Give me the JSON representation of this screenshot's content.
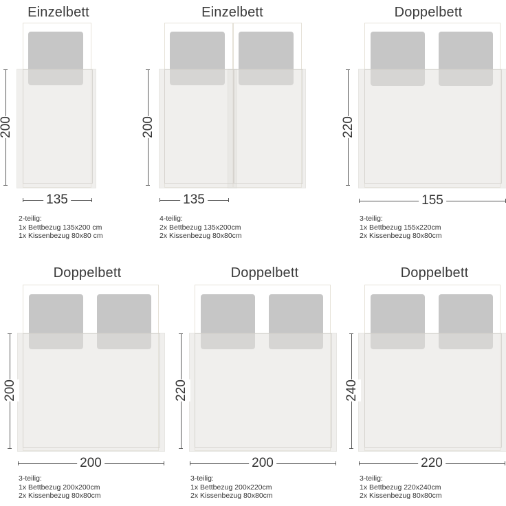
{
  "beds": [
    {
      "title": "Einzelbett",
      "width": "135",
      "height": "200",
      "set": "2-teilig:",
      "line1": "1x Bettbezug 135x200 cm",
      "line2": "1x Kissenbezug 80x80 cm"
    },
    {
      "title": "Einzelbett",
      "width": "135",
      "height": "200",
      "set": "4-teilig:",
      "line1": "2x Bettbezug 135x200cm",
      "line2": "2x Kissenbezug 80x80cm"
    },
    {
      "title": "Doppelbett",
      "width": "155",
      "height": "220",
      "set": "3-teilig:",
      "line1": "1x Bettbezug 155x220cm",
      "line2": "2x Kissenbezug 80x80cm"
    },
    {
      "title": "Doppelbett",
      "width": "200",
      "height": "200",
      "set": "3-teilig:",
      "line1": "1x Bettbezug 200x200cm",
      "line2": "2x Kissenbezug 80x80cm"
    },
    {
      "title": "Doppelbett",
      "width": "200",
      "height": "220",
      "set": "3-teilig:",
      "line1": "1x Bettbezug 200x220cm",
      "line2": "2x Kissenbezug 80x80cm"
    },
    {
      "title": "Doppelbett",
      "width": "220",
      "height": "240",
      "set": "3-teilig:",
      "line1": "1x Bettbezug 220x240cm",
      "line2": "2x Kissenbezug 80x80cm"
    }
  ]
}
